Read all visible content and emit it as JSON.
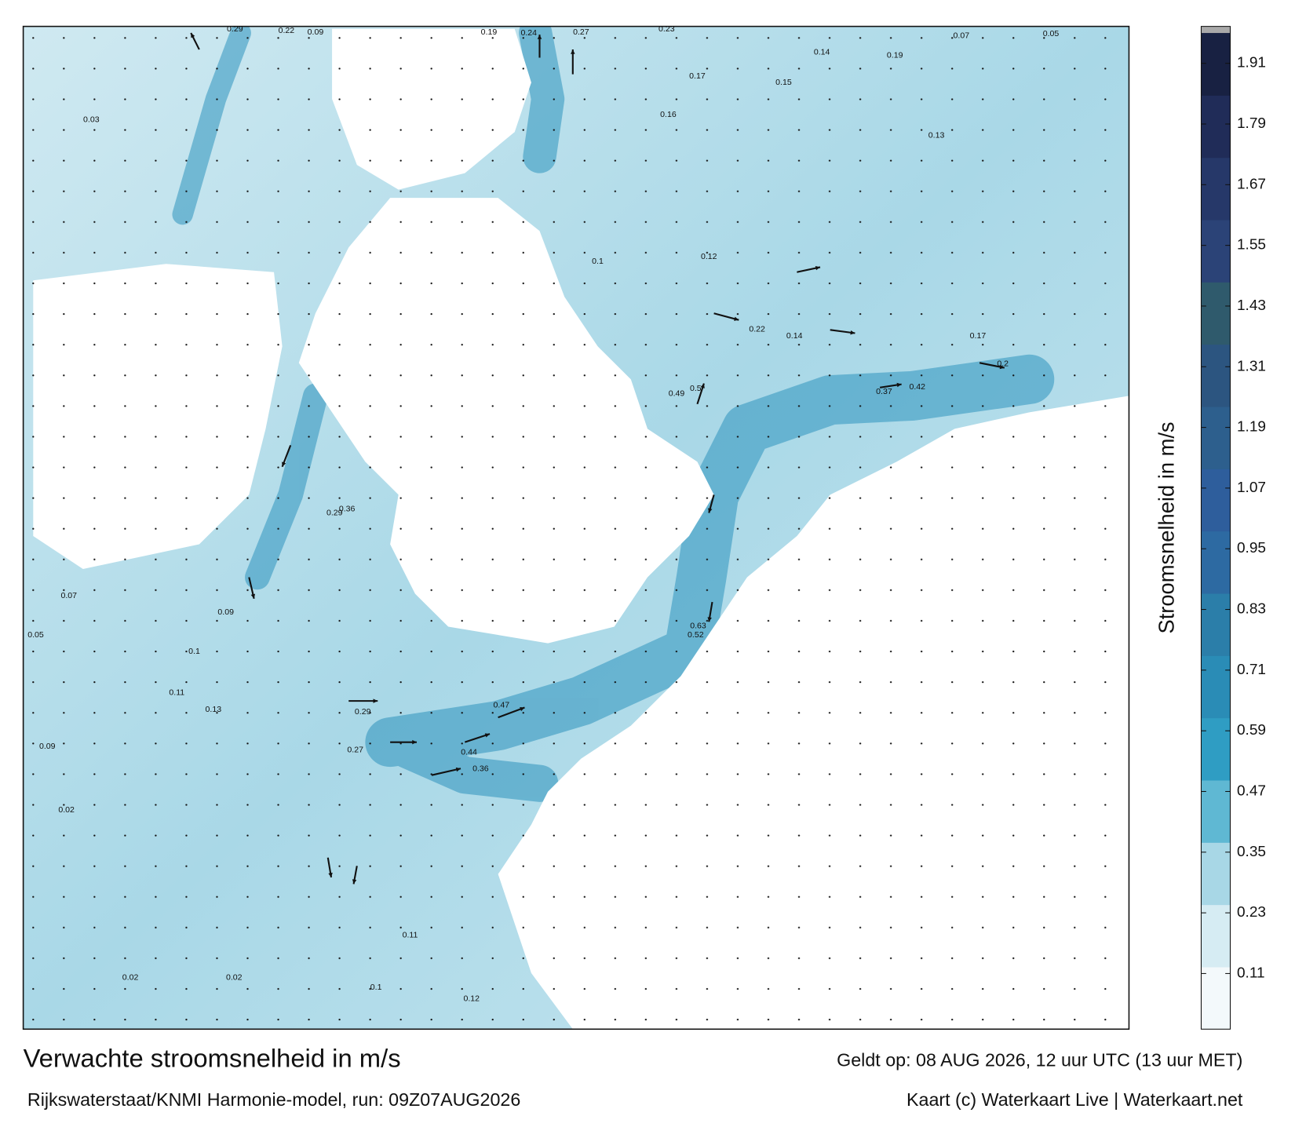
{
  "title": "Verwachte stroomsnelheid in m/s",
  "subtitle": "Rijkswaterstaat/KNMI Harmonie-model, run: 09Z07AUG2026",
  "valid_time": "Geldt op: 08 AUG 2026, 12 uur UTC (13 uur MET)",
  "credit": "Kaart (c) Waterkaart Live | Waterkaart.net",
  "colorbar": {
    "label": "Stroomsnelheid in m/s",
    "range": [
      0,
      1.97
    ],
    "ticks": [
      0.11,
      0.23,
      0.35,
      0.47,
      0.59,
      0.71,
      0.83,
      0.95,
      1.07,
      1.19,
      1.31,
      1.43,
      1.55,
      1.67,
      1.79,
      1.91
    ],
    "colors": [
      "#f3f9fb",
      "#d6ecf3",
      "#a8d7e6",
      "#5fb8d3",
      "#2f9dc3",
      "#2a8cb6",
      "#2b7ea9",
      "#2d6aa2",
      "#2e5e9c",
      "#2d5f8d",
      "#2c5580",
      "#2f5a6c",
      "#2b4377",
      "#263869",
      "#202c58",
      "#182142"
    ]
  },
  "map": {
    "labels": [
      0.29,
      0.22,
      0.09,
      0.19,
      0.24,
      0.27,
      0.23,
      0.07,
      0.05,
      0.03,
      0.14,
      0.19,
      0.17,
      0.15,
      0.16,
      0.13,
      0.12,
      0.1,
      0.22,
      0.14,
      0.37,
      0.42,
      0.5,
      0.49,
      0.29,
      0.36,
      0.63,
      0.52,
      0.47,
      0.44,
      0.36,
      0.27,
      0.29,
      0.07,
      0.05,
      0.09,
      0.1,
      0.11,
      0.13,
      0.09,
      0.02,
      0.02,
      0.02,
      0.12,
      0.11,
      0.1,
      0.17,
      0.2
    ]
  }
}
